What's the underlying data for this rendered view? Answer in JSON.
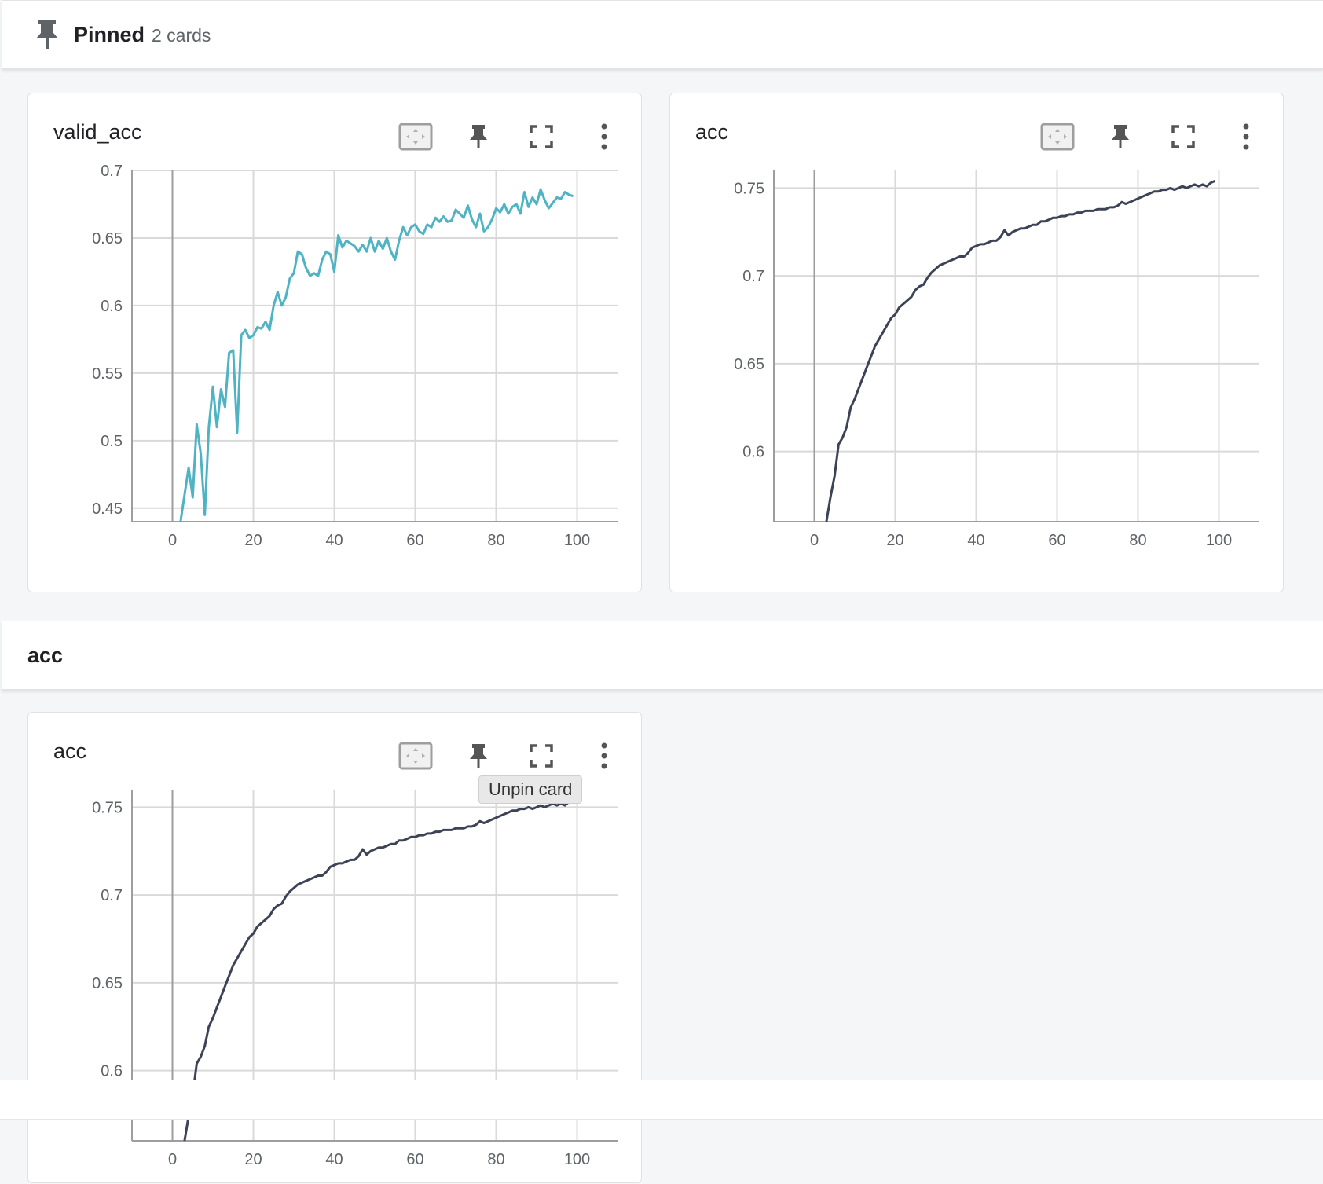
{
  "pinned": {
    "title": "Pinned",
    "count": "2 cards"
  },
  "group": {
    "title": "acc"
  },
  "tooltip": "Unpin card",
  "colors": {
    "teal": "#4fb3c4",
    "dark": "#3d4357",
    "grid": "#d9d9d9",
    "axis": "#9e9e9e"
  },
  "icons": [
    "fit-domain-icon",
    "pin-icon",
    "fullscreen-icon",
    "more-vert-icon"
  ],
  "cards": [
    {
      "id": "card1",
      "title": "valid_acc",
      "chart_data": {
        "type": "line",
        "title": "valid_acc",
        "xlim": [
          -10,
          110
        ],
        "ylim": [
          0.44,
          0.7
        ],
        "xticks": [
          0,
          20,
          40,
          60,
          80,
          100
        ],
        "yticks": [
          0.45,
          0.5,
          0.55,
          0.6,
          0.65,
          0.7
        ],
        "ytick_labels": [
          "0.45",
          "0.5",
          "0.55",
          "0.6",
          "0.65",
          "0.7"
        ],
        "grid": true,
        "series": [
          {
            "color": "#4fb3c4",
            "x": [
              2,
              4,
              5,
              6,
              7,
              8,
              9,
              10,
              11,
              12,
              13,
              14,
              15,
              16,
              17,
              18,
              19,
              20,
              21,
              22,
              23,
              24,
              25,
              26,
              27,
              28,
              29,
              30,
              31,
              32,
              33,
              34,
              35,
              36,
              37,
              38,
              39,
              40,
              41,
              42,
              43,
              44,
              45,
              46,
              47,
              48,
              49,
              50,
              51,
              52,
              53,
              54,
              55,
              56,
              57,
              58,
              59,
              60,
              61,
              62,
              63,
              64,
              65,
              66,
              67,
              68,
              69,
              70,
              71,
              72,
              73,
              74,
              75,
              76,
              77,
              78,
              79,
              80,
              81,
              82,
              83,
              84,
              85,
              86,
              87,
              88,
              89,
              90,
              91,
              92,
              93,
              94,
              95,
              96,
              97,
              98,
              99
            ],
            "y": [
              0.44,
              0.48,
              0.458,
              0.512,
              0.49,
              0.445,
              0.51,
              0.54,
              0.51,
              0.538,
              0.525,
              0.565,
              0.567,
              0.506,
              0.578,
              0.582,
              0.576,
              0.578,
              0.584,
              0.583,
              0.588,
              0.582,
              0.6,
              0.61,
              0.6,
              0.606,
              0.62,
              0.624,
              0.64,
              0.638,
              0.628,
              0.622,
              0.624,
              0.622,
              0.634,
              0.64,
              0.638,
              0.625,
              0.652,
              0.643,
              0.648,
              0.646,
              0.644,
              0.64,
              0.645,
              0.64,
              0.65,
              0.64,
              0.648,
              0.642,
              0.65,
              0.64,
              0.634,
              0.648,
              0.658,
              0.652,
              0.658,
              0.66,
              0.655,
              0.653,
              0.66,
              0.658,
              0.665,
              0.662,
              0.666,
              0.662,
              0.663,
              0.671,
              0.668,
              0.665,
              0.674,
              0.664,
              0.658,
              0.668,
              0.655,
              0.658,
              0.664,
              0.672,
              0.669,
              0.675,
              0.668,
              0.673,
              0.675,
              0.668,
              0.684,
              0.673,
              0.68,
              0.675,
              0.686,
              0.678,
              0.672,
              0.676,
              0.68,
              0.679,
              0.684,
              0.682,
              0.681
            ]
          }
        ]
      }
    },
    {
      "id": "card2",
      "title": "acc",
      "chart_data": {
        "type": "line",
        "title": "acc",
        "xlim": [
          -10,
          110
        ],
        "ylim": [
          0.56,
          0.76
        ],
        "xticks": [
          0,
          20,
          40,
          60,
          80,
          100
        ],
        "yticks": [
          0.6,
          0.65,
          0.7,
          0.75
        ],
        "ytick_labels": [
          "0.6",
          "0.65",
          "0.7",
          "0.75"
        ],
        "grid": true,
        "series": [
          {
            "color": "#3d4357",
            "x": [
              3,
              4,
              5,
              6,
              7,
              8,
              9,
              10,
              11,
              12,
              13,
              14,
              15,
              16,
              17,
              18,
              19,
              20,
              21,
              22,
              23,
              24,
              25,
              26,
              27,
              28,
              29,
              30,
              31,
              32,
              33,
              34,
              35,
              36,
              37,
              38,
              39,
              40,
              41,
              42,
              43,
              44,
              45,
              46,
              47,
              48,
              49,
              50,
              51,
              52,
              53,
              54,
              55,
              56,
              57,
              58,
              59,
              60,
              61,
              62,
              63,
              64,
              65,
              66,
              67,
              68,
              69,
              70,
              71,
              72,
              73,
              74,
              75,
              76,
              77,
              78,
              79,
              80,
              81,
              82,
              83,
              84,
              85,
              86,
              87,
              88,
              89,
              90,
              91,
              92,
              93,
              94,
              95,
              96,
              97,
              98,
              99
            ],
            "y": [
              0.56,
              0.574,
              0.586,
              0.604,
              0.608,
              0.614,
              0.625,
              0.63,
              0.636,
              0.642,
              0.648,
              0.654,
              0.66,
              0.664,
              0.668,
              0.672,
              0.676,
              0.678,
              0.682,
              0.684,
              0.686,
              0.688,
              0.692,
              0.694,
              0.695,
              0.699,
              0.702,
              0.704,
              0.706,
              0.707,
              0.708,
              0.709,
              0.71,
              0.711,
              0.711,
              0.713,
              0.716,
              0.717,
              0.718,
              0.718,
              0.719,
              0.72,
              0.72,
              0.722,
              0.726,
              0.723,
              0.725,
              0.726,
              0.727,
              0.727,
              0.728,
              0.729,
              0.729,
              0.731,
              0.731,
              0.732,
              0.733,
              0.733,
              0.734,
              0.734,
              0.735,
              0.735,
              0.736,
              0.736,
              0.737,
              0.737,
              0.737,
              0.738,
              0.738,
              0.738,
              0.739,
              0.739,
              0.74,
              0.742,
              0.741,
              0.742,
              0.743,
              0.744,
              0.745,
              0.746,
              0.747,
              0.748,
              0.748,
              0.749,
              0.749,
              0.75,
              0.749,
              0.75,
              0.751,
              0.75,
              0.751,
              0.752,
              0.751,
              0.752,
              0.751,
              0.753,
              0.754
            ]
          }
        ]
      }
    },
    {
      "id": "card3",
      "title": "acc",
      "chart_data": {
        "type": "line",
        "title": "acc",
        "xlim": [
          -10,
          110
        ],
        "ylim": [
          0.56,
          0.76
        ],
        "xticks": [
          0,
          20,
          40,
          60,
          80,
          100
        ],
        "yticks": [
          0.6,
          0.65,
          0.7,
          0.75
        ],
        "ytick_labels": [
          "0.6",
          "0.65",
          "0.7",
          "0.75"
        ],
        "grid": true,
        "series": [
          {
            "color": "#3d4357",
            "x": [
              3,
              4,
              5,
              6,
              7,
              8,
              9,
              10,
              11,
              12,
              13,
              14,
              15,
              16,
              17,
              18,
              19,
              20,
              21,
              22,
              23,
              24,
              25,
              26,
              27,
              28,
              29,
              30,
              31,
              32,
              33,
              34,
              35,
              36,
              37,
              38,
              39,
              40,
              41,
              42,
              43,
              44,
              45,
              46,
              47,
              48,
              49,
              50,
              51,
              52,
              53,
              54,
              55,
              56,
              57,
              58,
              59,
              60,
              61,
              62,
              63,
              64,
              65,
              66,
              67,
              68,
              69,
              70,
              71,
              72,
              73,
              74,
              75,
              76,
              77,
              78,
              79,
              80,
              81,
              82,
              83,
              84,
              85,
              86,
              87,
              88,
              89,
              90,
              91,
              92,
              93,
              94,
              95,
              96,
              97,
              98,
              99
            ],
            "y": [
              0.56,
              0.574,
              0.586,
              0.604,
              0.608,
              0.614,
              0.625,
              0.63,
              0.636,
              0.642,
              0.648,
              0.654,
              0.66,
              0.664,
              0.668,
              0.672,
              0.676,
              0.678,
              0.682,
              0.684,
              0.686,
              0.688,
              0.692,
              0.694,
              0.695,
              0.699,
              0.702,
              0.704,
              0.706,
              0.707,
              0.708,
              0.709,
              0.71,
              0.711,
              0.711,
              0.713,
              0.716,
              0.717,
              0.718,
              0.718,
              0.719,
              0.72,
              0.72,
              0.722,
              0.726,
              0.723,
              0.725,
              0.726,
              0.727,
              0.727,
              0.728,
              0.729,
              0.729,
              0.731,
              0.731,
              0.732,
              0.733,
              0.733,
              0.734,
              0.734,
              0.735,
              0.735,
              0.736,
              0.736,
              0.737,
              0.737,
              0.737,
              0.738,
              0.738,
              0.738,
              0.739,
              0.739,
              0.74,
              0.742,
              0.741,
              0.742,
              0.743,
              0.744,
              0.745,
              0.746,
              0.747,
              0.748,
              0.748,
              0.749,
              0.749,
              0.75,
              0.749,
              0.75,
              0.751,
              0.75,
              0.751,
              0.752,
              0.751,
              0.752,
              0.751,
              0.753,
              0.754
            ]
          }
        ]
      }
    }
  ]
}
